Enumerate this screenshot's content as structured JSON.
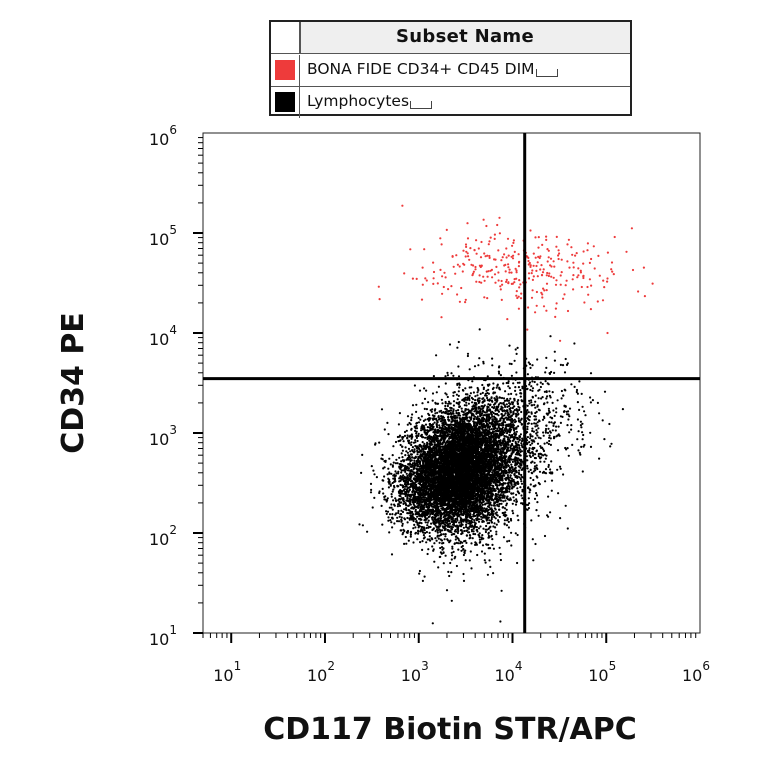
{
  "legend": {
    "header": "Subset Name",
    "items": [
      {
        "label": "BONA FIDE CD34+ CD45 DIM",
        "color": "#ee3b3b"
      },
      {
        "label": "Lymphocytes",
        "color": "#000000"
      }
    ]
  },
  "chart_data": {
    "type": "scatter",
    "xlabel": "CD117 Biotin STR/APC",
    "ylabel": "CD34 PE",
    "x_scale": "log",
    "y_scale": "log",
    "xlim": [
      5,
      1000000
    ],
    "ylim": [
      10,
      1000000
    ],
    "x_ticks": [
      {
        "base": "10",
        "exp": "1",
        "value": 10
      },
      {
        "base": "10",
        "exp": "2",
        "value": 100
      },
      {
        "base": "10",
        "exp": "3",
        "value": 1000
      },
      {
        "base": "10",
        "exp": "4",
        "value": 10000
      },
      {
        "base": "10",
        "exp": "5",
        "value": 100000
      },
      {
        "base": "10",
        "exp": "6",
        "value": 1000000
      }
    ],
    "y_ticks": [
      {
        "base": "10",
        "exp": "1",
        "value": 10
      },
      {
        "base": "10",
        "exp": "2",
        "value": 100
      },
      {
        "base": "10",
        "exp": "3",
        "value": 1000
      },
      {
        "base": "10",
        "exp": "4",
        "value": 10000
      },
      {
        "base": "10",
        "exp": "5",
        "value": 100000
      },
      {
        "base": "10",
        "exp": "6",
        "value": 1000000
      }
    ],
    "quadrant_gate": {
      "x": 13500,
      "y": 3500
    },
    "grid": false,
    "legend_position": "top",
    "series": [
      {
        "name": "BONA FIDE CD34+ CD45 DIM",
        "color": "#ee3b3b",
        "clusters": [
          {
            "cx": 20000,
            "cy": 40000,
            "sx": 0.45,
            "sy": 0.2,
            "n": 230
          },
          {
            "cx": 4000,
            "cy": 50000,
            "sx": 0.4,
            "sy": 0.2,
            "n": 90
          }
        ]
      },
      {
        "name": "Lymphocytes",
        "color": "#000000",
        "clusters": [
          {
            "cx": 2800,
            "cy": 450,
            "sx": 0.26,
            "sy": 0.27,
            "n": 6000
          },
          {
            "cx": 6000,
            "cy": 800,
            "sx": 0.3,
            "sy": 0.3,
            "n": 1500
          },
          {
            "cx": 1500,
            "cy": 250,
            "sx": 0.25,
            "sy": 0.2,
            "n": 1500
          },
          {
            "cx": 15000,
            "cy": 1500,
            "sx": 0.35,
            "sy": 0.3,
            "n": 400
          },
          {
            "cx": 3000,
            "cy": 250,
            "sx": 0.3,
            "sy": 0.35,
            "n": 700
          }
        ]
      }
    ]
  }
}
